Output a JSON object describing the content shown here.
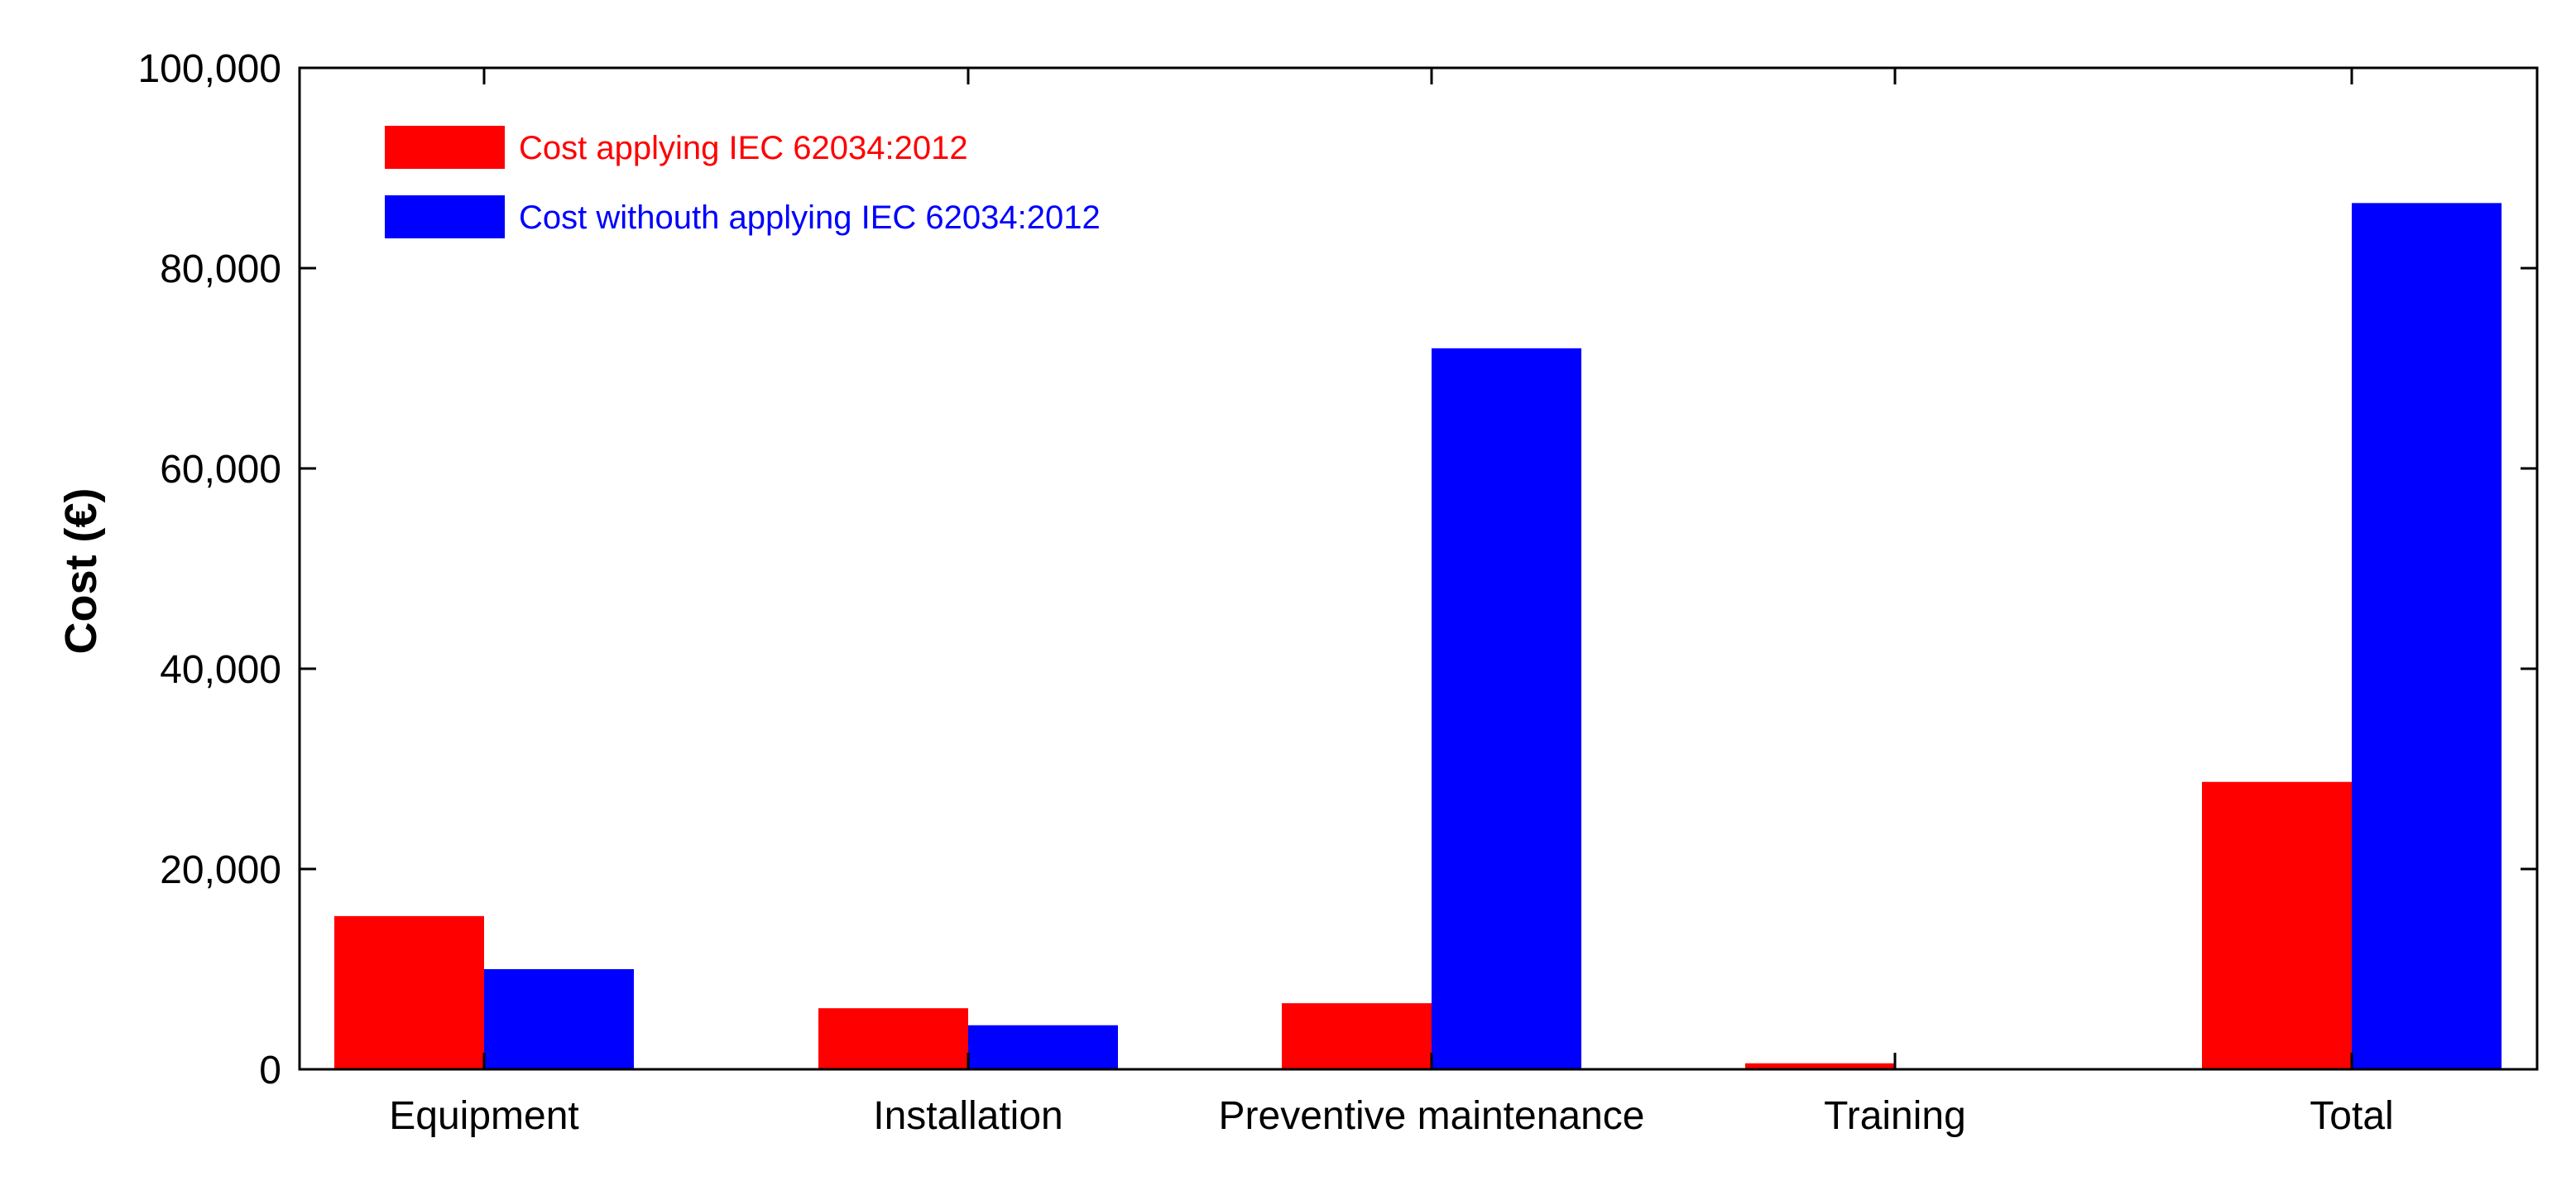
{
  "chart_data": {
    "type": "bar",
    "title": "",
    "xlabel": "",
    "ylabel": "Cost (€)",
    "categories": [
      "Equipment",
      "Installation",
      "Preventive maintenance",
      "Training",
      "Total"
    ],
    "series": [
      {
        "name": "Cost applying IEC 62034:2012",
        "color": "#ff0000",
        "values": [
          15300,
          6100,
          6600,
          600,
          28700
        ]
      },
      {
        "name": "Cost withouth applying IEC 62034:2012",
        "color": "#0000ff",
        "values": [
          10000,
          4400,
          72000,
          0,
          86500
        ]
      }
    ],
    "ylim": [
      0,
      100000
    ],
    "yticks": [
      "0",
      "20,000",
      "40,000",
      "60,000",
      "80,000",
      "100,000"
    ],
    "ytick_values": [
      0,
      20000,
      40000,
      60000,
      80000,
      100000
    ],
    "grid": false,
    "legend_position": "top-left"
  }
}
